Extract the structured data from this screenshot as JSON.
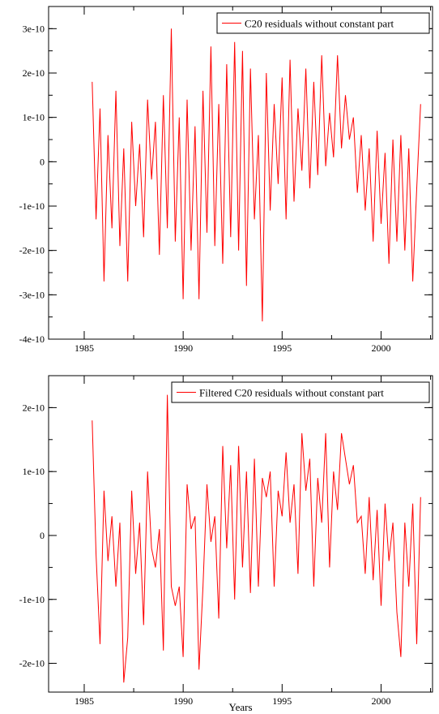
{
  "chart_data": [
    {
      "type": "line",
      "title": "",
      "xlabel": "",
      "ylabel": "",
      "xlim": [
        1983.2,
        2002.6
      ],
      "ylim": [
        -4e-10,
        3.5e-10
      ],
      "x_ticks": [
        1985,
        1990,
        1995,
        2000
      ],
      "x_tick_labels": [
        "1985",
        "1990",
        "1995",
        "2000"
      ],
      "y_ticks": [
        -4e-10,
        -3e-10,
        -2e-10,
        -1e-10,
        0,
        1e-10,
        2e-10,
        3e-10
      ],
      "y_tick_labels": [
        "-4e-10",
        "-3e-10",
        "-2e-10",
        "-1e-10",
        "0",
        "1e-10",
        "2e-10",
        "3e-10"
      ],
      "legend_position": "top-right",
      "series": [
        {
          "name": "C20 residuals without constant part",
          "color": "#ff0000",
          "x": [
            1985.4,
            1985.6,
            1985.8,
            1986.0,
            1986.2,
            1986.4,
            1986.6,
            1986.8,
            1987.0,
            1987.2,
            1987.4,
            1987.6,
            1987.8,
            1988.0,
            1988.2,
            1988.4,
            1988.6,
            1988.8,
            1989.0,
            1989.2,
            1989.4,
            1989.6,
            1989.8,
            1990.0,
            1990.2,
            1990.4,
            1990.6,
            1990.8,
            1991.0,
            1991.2,
            1991.4,
            1991.6,
            1991.8,
            1992.0,
            1992.2,
            1992.4,
            1992.6,
            1992.8,
            1993.0,
            1993.2,
            1993.4,
            1993.6,
            1993.8,
            1994.0,
            1994.2,
            1994.4,
            1994.6,
            1994.8,
            1995.0,
            1995.2,
            1995.4,
            1995.6,
            1995.8,
            1996.0,
            1996.2,
            1996.4,
            1996.6,
            1996.8,
            1997.0,
            1997.2,
            1997.4,
            1997.6,
            1997.8,
            1998.0,
            1998.2,
            1998.4,
            1998.6,
            1998.8,
            1999.0,
            1999.2,
            1999.4,
            1999.6,
            1999.8,
            2000.0,
            2000.2,
            2000.4,
            2000.6,
            2000.8,
            2001.0,
            2001.2,
            2001.4,
            2001.6,
            2001.8,
            2002.0
          ],
          "y": [
            1.8e-10,
            -1.3e-10,
            1.2e-10,
            -2.7e-10,
            6e-11,
            -1.5e-10,
            1.6e-10,
            -1.9e-10,
            3e-11,
            -2.7e-10,
            9e-11,
            -1e-10,
            4e-11,
            -1.7e-10,
            1.4e-10,
            -4e-11,
            9e-11,
            -2.1e-10,
            1.5e-10,
            -1.5e-10,
            3e-10,
            -1.8e-10,
            1e-10,
            -3.1e-10,
            1.4e-10,
            -2e-10,
            8e-11,
            -3.1e-10,
            1.6e-10,
            -1.6e-10,
            2.6e-10,
            -1.9e-10,
            1.3e-10,
            -2.3e-10,
            2.2e-10,
            -1.7e-10,
            2.7e-10,
            -2e-10,
            2.5e-10,
            -2.8e-10,
            2.1e-10,
            -1.3e-10,
            6e-11,
            -3.6e-10,
            2e-10,
            -1.1e-10,
            1.3e-10,
            -5e-11,
            1.9e-10,
            -1.3e-10,
            2.3e-10,
            -9e-11,
            1.2e-10,
            -2e-11,
            2.1e-10,
            -6e-11,
            1.8e-10,
            -3e-11,
            2.4e-10,
            -1e-11,
            1.1e-10,
            1e-11,
            2.4e-10,
            3e-11,
            1.5e-10,
            5e-11,
            1e-10,
            -7e-11,
            6e-11,
            -1.1e-10,
            3e-11,
            -1.8e-10,
            7e-11,
            -1.4e-10,
            2e-11,
            -2.3e-10,
            5e-11,
            -1.8e-10,
            6e-11,
            -2e-10,
            3e-11,
            -2.7e-10,
            -6e-11,
            1.3e-10
          ]
        }
      ]
    },
    {
      "type": "line",
      "title": "",
      "xlabel": "Years",
      "ylabel": "",
      "xlim": [
        1983.2,
        2002.6
      ],
      "ylim": [
        -2.45e-10,
        2.5e-10
      ],
      "x_ticks": [
        1985,
        1990,
        1995,
        2000
      ],
      "x_tick_labels": [
        "1985",
        "1990",
        "1995",
        "2000"
      ],
      "y_ticks": [
        -2e-10,
        -1e-10,
        0,
        1e-10,
        2e-10
      ],
      "y_tick_labels": [
        "-2e-10",
        "-1e-10",
        "0",
        "1e-10",
        "2e-10"
      ],
      "legend_position": "top-right",
      "series": [
        {
          "name": "Filtered C20 residuals without constant part",
          "color": "#ff0000",
          "x": [
            1985.4,
            1985.6,
            1985.8,
            1986.0,
            1986.2,
            1986.4,
            1986.6,
            1986.8,
            1987.0,
            1987.2,
            1987.4,
            1987.6,
            1987.8,
            1988.0,
            1988.2,
            1988.4,
            1988.6,
            1988.8,
            1989.0,
            1989.2,
            1989.4,
            1989.6,
            1989.8,
            1990.0,
            1990.2,
            1990.4,
            1990.6,
            1990.8,
            1991.0,
            1991.2,
            1991.4,
            1991.6,
            1991.8,
            1992.0,
            1992.2,
            1992.4,
            1992.6,
            1992.8,
            1993.0,
            1993.2,
            1993.4,
            1993.6,
            1993.8,
            1994.0,
            1994.2,
            1994.4,
            1994.6,
            1994.8,
            1995.0,
            1995.2,
            1995.4,
            1995.6,
            1995.8,
            1996.0,
            1996.2,
            1996.4,
            1996.6,
            1996.8,
            1997.0,
            1997.2,
            1997.4,
            1997.6,
            1997.8,
            1998.0,
            1998.2,
            1998.4,
            1998.6,
            1998.8,
            1999.0,
            1999.2,
            1999.4,
            1999.6,
            1999.8,
            2000.0,
            2000.2,
            2000.4,
            2000.6,
            2000.8,
            2001.0,
            2001.2,
            2001.4,
            2001.6,
            2001.8,
            2002.0
          ],
          "y": [
            1.8e-10,
            -3e-11,
            -1.7e-10,
            7e-11,
            -4e-11,
            3e-11,
            -8e-11,
            2e-11,
            -2.3e-10,
            -1.6e-10,
            7e-11,
            -6e-11,
            2e-11,
            -1.4e-10,
            1e-10,
            -2e-11,
            -5e-11,
            1e-11,
            -1.8e-10,
            2.2e-10,
            -8e-11,
            -1.1e-10,
            -8e-11,
            -1.9e-10,
            8e-11,
            1e-11,
            3e-11,
            -2.1e-10,
            -8e-11,
            8e-11,
            -1e-11,
            3e-11,
            -1.3e-10,
            1.4e-10,
            -2e-11,
            1.1e-10,
            -1e-10,
            1.4e-10,
            -5e-11,
            1e-10,
            -9e-11,
            1.2e-10,
            -8e-11,
            9e-11,
            6e-11,
            1e-10,
            -8e-11,
            7e-11,
            3e-11,
            1.3e-10,
            2e-11,
            8e-11,
            -6e-11,
            1.6e-10,
            7e-11,
            1.2e-10,
            -8e-11,
            9e-11,
            2e-11,
            1.6e-10,
            -5e-11,
            1e-10,
            4e-11,
            1.6e-10,
            1.2e-10,
            8e-11,
            1.1e-10,
            2e-11,
            3e-11,
            -6e-11,
            6e-11,
            -7e-11,
            4e-11,
            -1.1e-10,
            5e-11,
            -4e-11,
            2e-11,
            -1.2e-10,
            -1.9e-10,
            2e-11,
            -8e-11,
            5e-11,
            -1.7e-10,
            6e-11
          ]
        }
      ]
    }
  ]
}
